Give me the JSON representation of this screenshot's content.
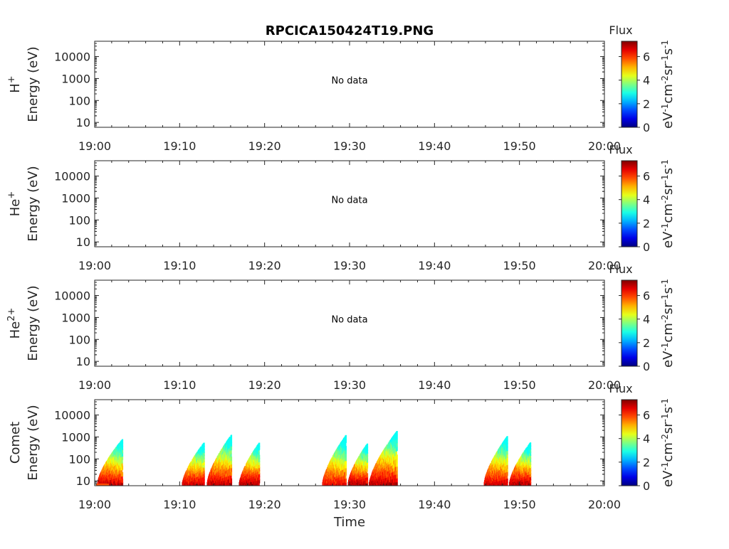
{
  "title": "RPCICA150424T19.PNG",
  "xlabel": "Time",
  "time_ticks": [
    "19:00",
    "19:10",
    "19:20",
    "19:30",
    "19:40",
    "19:50",
    "20:00"
  ],
  "energy_ticks": [
    "10",
    "100",
    "1000",
    "10000"
  ],
  "colorbar": {
    "title": "Flux",
    "ticks": [
      "0",
      "2",
      "4",
      "6"
    ],
    "unit_label": "eV-1cm-2sr-1s-1",
    "range": [
      0,
      7.3
    ],
    "colormap": "jet"
  },
  "panels": [
    {
      "species": "H+",
      "ylabel": "Energy (eV)",
      "no_data": true,
      "no_data_text": "No data"
    },
    {
      "species": "He+",
      "ylabel": "Energy (eV)",
      "no_data": true,
      "no_data_text": "No data"
    },
    {
      "species": "He2+",
      "ylabel": "Energy (eV)",
      "no_data": true,
      "no_data_text": "No data"
    },
    {
      "species": "Comet",
      "ylabel": "Energy (eV)",
      "no_data": false,
      "no_data_text": ""
    }
  ],
  "chart_data": {
    "type": "heatmap",
    "title": "RPCICA150424T19.PNG",
    "xlabel": "Time",
    "xlim": [
      "19:00",
      "20:00"
    ],
    "ylabel": "Energy (eV)",
    "yscale": "log",
    "ylim": [
      6,
      50000
    ],
    "color_label": "Flux",
    "color_range": [
      0,
      7.3
    ],
    "panels": [
      {
        "species": "H+",
        "data": null
      },
      {
        "species": "He+",
        "data": null
      },
      {
        "species": "He2+",
        "data": null
      },
      {
        "species": "Comet",
        "bursts": [
          {
            "start_min": 0.3,
            "end_min": 3.2,
            "peak_energy_eV": 650,
            "peak_flux": 6.8
          },
          {
            "start_min": 10.3,
            "end_min": 12.8,
            "peak_energy_eV": 450,
            "peak_flux": 6.8
          },
          {
            "start_min": 13.2,
            "end_min": 16.0,
            "peak_energy_eV": 1000,
            "peak_flux": 6.8
          },
          {
            "start_min": 17.0,
            "end_min": 19.3,
            "peak_energy_eV": 450,
            "peak_flux": 7.0
          },
          {
            "start_min": 26.8,
            "end_min": 29.5,
            "peak_energy_eV": 1000,
            "peak_flux": 6.5
          },
          {
            "start_min": 29.8,
            "end_min": 32.0,
            "peak_energy_eV": 400,
            "peak_flux": 7.0
          },
          {
            "start_min": 32.3,
            "end_min": 35.5,
            "peak_energy_eV": 1500,
            "peak_flux": 6.9
          },
          {
            "start_min": 45.8,
            "end_min": 48.5,
            "peak_energy_eV": 900,
            "peak_flux": 6.7
          },
          {
            "start_min": 48.8,
            "end_min": 51.2,
            "peak_energy_eV": 450,
            "peak_flux": 7.0
          }
        ]
      }
    ]
  }
}
